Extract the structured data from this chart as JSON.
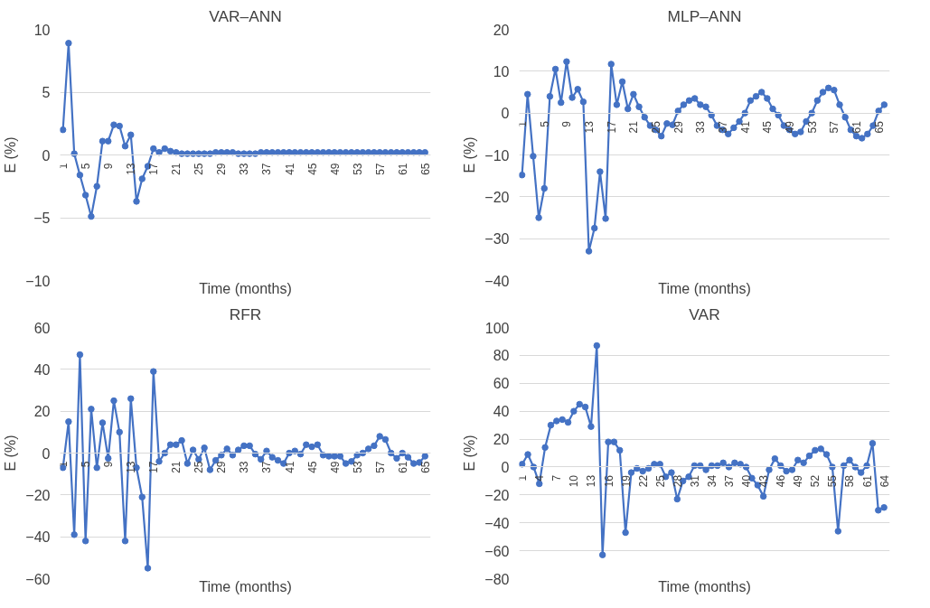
{
  "chart_data": [
    {
      "type": "line",
      "title": "VAR–ANN",
      "xlabel": "Time (months)",
      "ylabel": "E (%)",
      "ylim": [
        -10,
        10
      ],
      "yticks": [
        -10,
        -5,
        0,
        5,
        10
      ],
      "grid": "y",
      "marker": "circle",
      "line_style": "solid",
      "categories": [
        "1",
        null,
        null,
        null,
        "5",
        null,
        null,
        null,
        "9",
        null,
        null,
        null,
        "13",
        null,
        null,
        null,
        "17",
        null,
        null,
        null,
        "21",
        null,
        null,
        null,
        "25",
        null,
        null,
        null,
        "29",
        null,
        null,
        null,
        "33",
        null,
        null,
        null,
        "37",
        null,
        null,
        null,
        "41",
        null,
        null,
        null,
        "45",
        null,
        null,
        null,
        "49",
        null,
        null,
        null,
        "53",
        null,
        null,
        null,
        "57",
        null,
        null,
        null,
        "61",
        null,
        null,
        null,
        "65"
      ],
      "series": [
        {
          "color": "#4472c4",
          "values": [
            2.0,
            8.9,
            0.1,
            -1.6,
            -3.2,
            -4.9,
            -2.5,
            1.1,
            1.1,
            2.4,
            2.3,
            0.7,
            1.6,
            -3.7,
            -1.9,
            -0.9,
            0.5,
            0.2,
            0.5,
            0.3,
            0.2,
            0.1,
            0.1,
            0.1,
            0.1,
            0.1,
            0.1,
            0.2,
            0.2,
            0.2,
            0.2,
            0.1,
            0.1,
            0.1,
            0.1,
            0.2,
            0.2,
            0.2,
            0.2,
            0.2,
            0.2,
            0.2,
            0.2,
            0.2,
            0.2,
            0.2,
            0.2,
            0.2,
            0.2,
            0.2,
            0.2,
            0.2,
            0.2,
            0.2,
            0.2,
            0.2,
            0.2,
            0.2,
            0.2,
            0.2,
            0.2,
            0.2,
            0.2,
            0.2,
            0.2
          ]
        }
      ]
    },
    {
      "type": "line",
      "title": "MLP–ANN",
      "xlabel": "Time (months)",
      "ylabel": "E (%)",
      "ylim": [
        -40,
        20
      ],
      "yticks": [
        -40,
        -30,
        -20,
        -10,
        0,
        10,
        20
      ],
      "grid": "y",
      "marker": "circle",
      "line_style": "solid",
      "categories": [
        "1",
        null,
        null,
        null,
        "5",
        null,
        null,
        null,
        "9",
        null,
        null,
        null,
        "13",
        null,
        null,
        null,
        "17",
        null,
        null,
        null,
        "21",
        null,
        null,
        null,
        "25",
        null,
        null,
        null,
        "29",
        null,
        null,
        null,
        "33",
        null,
        null,
        null,
        "37",
        null,
        null,
        null,
        "41",
        null,
        null,
        null,
        "45",
        null,
        null,
        null,
        "49",
        null,
        null,
        null,
        "53",
        null,
        null,
        null,
        "57",
        null,
        null,
        null,
        "61",
        null,
        null,
        null,
        "65",
        null
      ],
      "series": [
        {
          "color": "#4472c4",
          "values": [
            -14.8,
            4.5,
            -10.3,
            -25,
            -18,
            4,
            10.5,
            2.5,
            12.3,
            3.7,
            5.7,
            2.7,
            -33,
            -27.5,
            -14,
            -25.2,
            11.7,
            2,
            7.5,
            1,
            4.5,
            1.5,
            -1,
            -3,
            -4,
            -5.5,
            -2.5,
            -2.8,
            0.5,
            2,
            3,
            3.5,
            2,
            1.5,
            -0.5,
            -3,
            -4,
            -5,
            -3.5,
            -2,
            0,
            3,
            4,
            5,
            3.5,
            1,
            -0.5,
            -3,
            -4,
            -5,
            -4.5,
            -2,
            0,
            3,
            5,
            6,
            5.5,
            2,
            -1,
            -4,
            -5.5,
            -6,
            -5,
            -3,
            0.5,
            2
          ]
        }
      ]
    },
    {
      "type": "line",
      "title": "RFR",
      "xlabel": "Time (months)",
      "ylabel": "E (%)",
      "ylim": [
        -60,
        60
      ],
      "yticks": [
        -60,
        -40,
        -20,
        0,
        20,
        40,
        60
      ],
      "grid": "y",
      "marker": "circle",
      "line_style": "solid",
      "categories": [
        "1",
        null,
        null,
        null,
        "5",
        null,
        null,
        null,
        "9",
        null,
        null,
        null,
        "13",
        null,
        null,
        null,
        "17",
        null,
        null,
        null,
        "21",
        null,
        null,
        null,
        "25",
        null,
        null,
        null,
        "29",
        null,
        null,
        null,
        "33",
        null,
        null,
        null,
        "37",
        null,
        null,
        null,
        "41",
        null,
        null,
        null,
        "45",
        null,
        null,
        null,
        "49",
        null,
        null,
        null,
        "53",
        null,
        null,
        null,
        "57",
        null,
        null,
        null,
        "61",
        null,
        null,
        null,
        "65"
      ],
      "series": [
        {
          "color": "#4472c4",
          "values": [
            -7,
            15,
            -39,
            47,
            -42,
            21,
            -7,
            14.5,
            -2.5,
            25,
            10,
            -42,
            26,
            -7,
            -21,
            -55,
            39,
            -4,
            0,
            4,
            4,
            6,
            -5,
            1.5,
            -3,
            2.5,
            -8,
            -3.5,
            -1,
            2,
            -1,
            1.5,
            3.5,
            3.5,
            -0.5,
            -3,
            1,
            -2,
            -3.5,
            -5,
            0,
            1,
            -0.5,
            4,
            3,
            4,
            -1,
            -1.5,
            -1.5,
            -1.5,
            -5,
            -4,
            -1,
            0,
            2,
            3.5,
            8,
            6.5,
            0,
            -2.5,
            0,
            -2,
            -5,
            -4.5,
            -1.5
          ]
        }
      ]
    },
    {
      "type": "line",
      "title": "VAR",
      "xlabel": "Time (months)",
      "ylabel": "E (%)",
      "ylim": [
        -80,
        100
      ],
      "yticks": [
        -80,
        -60,
        -40,
        -20,
        0,
        20,
        40,
        60,
        80,
        100
      ],
      "grid": "y",
      "marker": "circle",
      "line_style": "solid",
      "categories": [
        "1",
        null,
        null,
        "4",
        null,
        null,
        "7",
        null,
        null,
        "10",
        null,
        null,
        "13",
        null,
        null,
        "16",
        null,
        null,
        "19",
        null,
        null,
        "22",
        null,
        null,
        "25",
        null,
        null,
        "28",
        null,
        null,
        "31",
        null,
        null,
        "34",
        null,
        null,
        "37",
        null,
        null,
        "40",
        null,
        null,
        "43",
        null,
        null,
        "46",
        null,
        null,
        "49",
        null,
        null,
        "52",
        null,
        null,
        "55",
        null,
        null,
        "58",
        null,
        null,
        "61",
        null,
        null,
        "64"
      ],
      "series": [
        {
          "color": "#4472c4",
          "values": [
            2,
            9,
            0,
            -12,
            14,
            30,
            33,
            34,
            32,
            40,
            45,
            43,
            29,
            87,
            -63,
            18,
            18,
            12,
            -47,
            -4,
            -1,
            -3,
            -1,
            2,
            2,
            -7,
            -4,
            -23,
            -10,
            -7,
            1,
            1,
            -2,
            1,
            1,
            3,
            0,
            3,
            2,
            0,
            -8,
            -13,
            -21,
            -2,
            6,
            1,
            -3,
            -2,
            5,
            3,
            8,
            12,
            13,
            9,
            0,
            -46,
            1,
            5,
            0,
            -4,
            1,
            17,
            -31,
            -29
          ]
        }
      ]
    }
  ]
}
